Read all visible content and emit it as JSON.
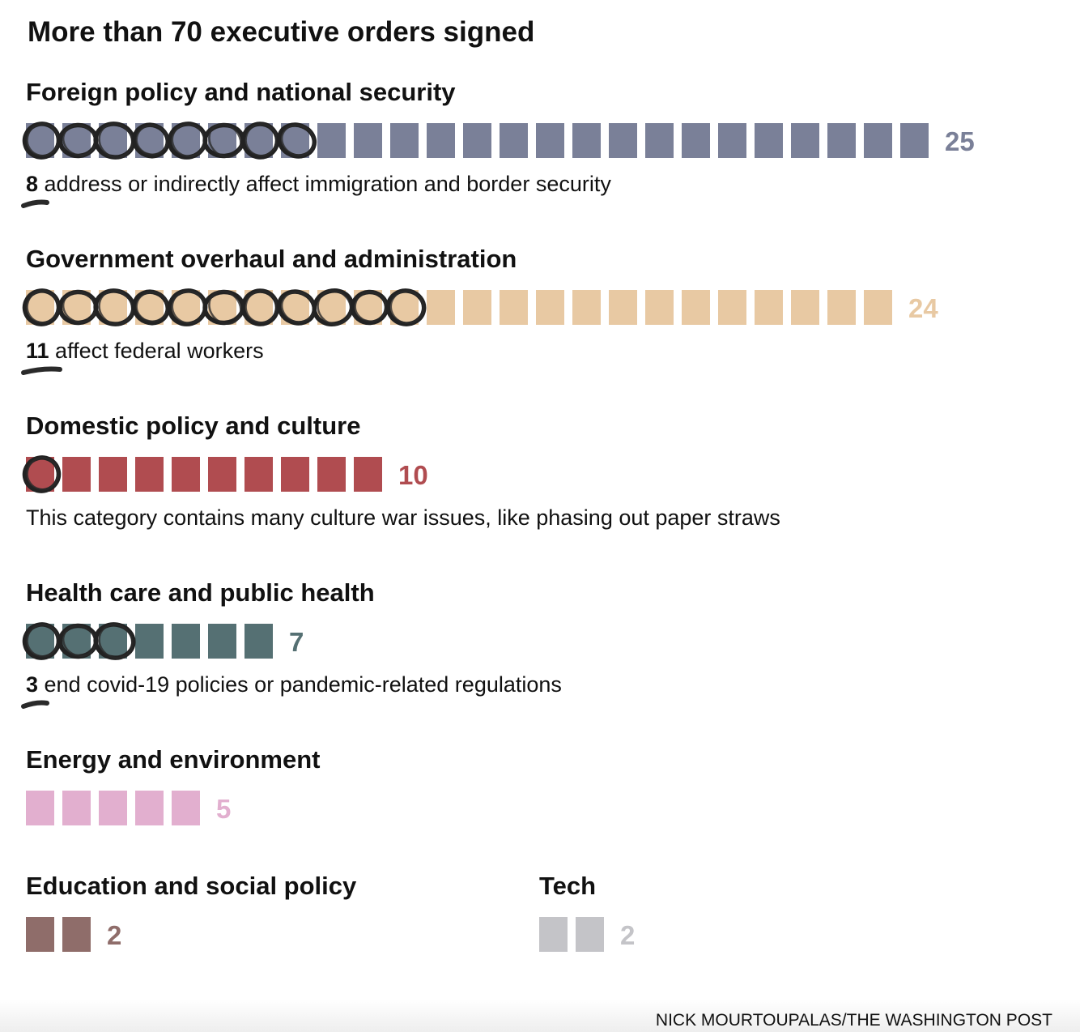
{
  "chart_data": {
    "type": "waffle",
    "title": "More than 70 executive orders signed",
    "unit": "executive orders",
    "categories": [
      {
        "name": "Foreign policy and national security",
        "value": 25,
        "color": "#7a8098",
        "highlighted": 8,
        "note_count": "8",
        "note": "address or indirectly affect immigration and border security"
      },
      {
        "name": "Government overhaul and administration",
        "value": 24,
        "color": "#e8c9a3",
        "highlighted": 11,
        "note_count": "11",
        "note": "affect federal workers"
      },
      {
        "name": "Domestic policy and culture",
        "value": 10,
        "color": "#b04c50",
        "highlighted": 1,
        "note_count": "",
        "note": "This category contains many culture war issues, like phasing out paper straws"
      },
      {
        "name": "Health care and public health",
        "value": 7,
        "color": "#557073",
        "highlighted": 3,
        "note_count": "3",
        "note": "end covid-19 policies or pandemic-related regulations"
      },
      {
        "name": "Energy and environment",
        "value": 5,
        "color": "#e2afcf",
        "highlighted": 0,
        "note_count": "",
        "note": ""
      },
      {
        "name": "Education and social policy",
        "value": 2,
        "color": "#8f6d6a",
        "highlighted": 0,
        "note_count": "",
        "note": ""
      },
      {
        "name": "Tech",
        "value": 2,
        "color": "#c4c4c8",
        "highlighted": 0,
        "note_count": "",
        "note": ""
      }
    ],
    "credit": "NICK MOURTOUPALAS/THE WASHINGTON POST"
  }
}
